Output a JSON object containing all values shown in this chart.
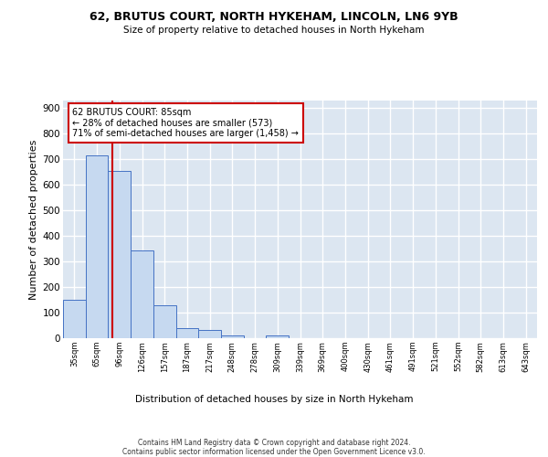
{
  "title": "62, BRUTUS COURT, NORTH HYKEHAM, LINCOLN, LN6 9YB",
  "subtitle": "Size of property relative to detached houses in North Hykeham",
  "xlabel": "Distribution of detached houses by size in North Hykeham",
  "ylabel": "Number of detached properties",
  "bar_color": "#c6d9f0",
  "bar_edge_color": "#4472c4",
  "background_color": "#dce6f1",
  "grid_color": "#ffffff",
  "categories": [
    "35sqm",
    "65sqm",
    "96sqm",
    "126sqm",
    "157sqm",
    "187sqm",
    "217sqm",
    "248sqm",
    "278sqm",
    "309sqm",
    "339sqm",
    "369sqm",
    "400sqm",
    "430sqm",
    "461sqm",
    "491sqm",
    "521sqm",
    "552sqm",
    "582sqm",
    "613sqm",
    "643sqm"
  ],
  "values": [
    150,
    715,
    655,
    343,
    130,
    40,
    33,
    12,
    0,
    10,
    0,
    0,
    0,
    0,
    0,
    0,
    0,
    0,
    0,
    0,
    0
  ],
  "property_line_x": 1.7,
  "property_line_color": "#cc0000",
  "annotation_text": "62 BRUTUS COURT: 85sqm\n← 28% of detached houses are smaller (573)\n71% of semi-detached houses are larger (1,458) →",
  "annotation_box_color": "#cc0000",
  "ylim": [
    0,
    930
  ],
  "yticks": [
    0,
    100,
    200,
    300,
    400,
    500,
    600,
    700,
    800,
    900
  ],
  "footer_line1": "Contains HM Land Registry data © Crown copyright and database right 2024.",
  "footer_line2": "Contains public sector information licensed under the Open Government Licence v3.0."
}
